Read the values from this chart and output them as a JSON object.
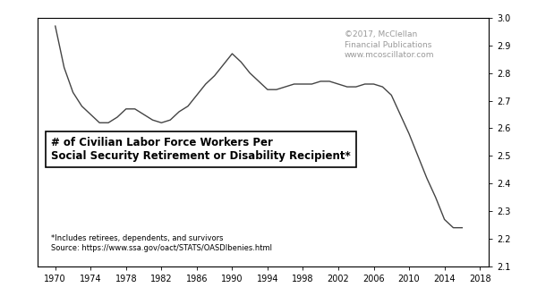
{
  "years": [
    1970,
    1971,
    1972,
    1973,
    1974,
    1975,
    1976,
    1977,
    1978,
    1979,
    1980,
    1981,
    1982,
    1983,
    1984,
    1985,
    1986,
    1987,
    1988,
    1989,
    1990,
    1991,
    1992,
    1993,
    1994,
    1995,
    1996,
    1997,
    1998,
    1999,
    2000,
    2001,
    2002,
    2003,
    2004,
    2005,
    2006,
    2007,
    2008,
    2009,
    2010,
    2011,
    2012,
    2013,
    2014,
    2015,
    2016
  ],
  "values": [
    2.97,
    2.82,
    2.73,
    2.68,
    2.65,
    2.62,
    2.62,
    2.64,
    2.67,
    2.67,
    2.65,
    2.63,
    2.62,
    2.63,
    2.66,
    2.68,
    2.72,
    2.76,
    2.79,
    2.83,
    2.87,
    2.84,
    2.8,
    2.77,
    2.74,
    2.74,
    2.75,
    2.76,
    2.76,
    2.76,
    2.77,
    2.77,
    2.76,
    2.75,
    2.75,
    2.76,
    2.76,
    2.75,
    2.72,
    2.65,
    2.58,
    2.5,
    2.42,
    2.35,
    2.27,
    2.24,
    2.24
  ],
  "xlim": [
    1968,
    2019
  ],
  "ylim": [
    2.1,
    3.0
  ],
  "yticks": [
    2.1,
    2.2,
    2.3,
    2.4,
    2.5,
    2.6,
    2.7,
    2.8,
    2.9,
    3.0
  ],
  "xticks": [
    1970,
    1974,
    1978,
    1982,
    1986,
    1990,
    1994,
    1998,
    2002,
    2006,
    2010,
    2014,
    2018
  ],
  "line_color": "#444444",
  "background_color": "#ffffff",
  "annotation_title_line1": "# of Civilian Labor Force Workers Per",
  "annotation_title_line2": "Social Security Retirement or Disability Recipient*",
  "footnote_line1": "*Includes retirees, dependents, and survivors",
  "footnote_line2": "Source: https://www.ssa.gov/oact/STATS/OASDIbenies.html",
  "watermark_line1": "©2017, McClellan",
  "watermark_line2": "Financial Publications",
  "watermark_line3": "www.mcoscillator.com"
}
